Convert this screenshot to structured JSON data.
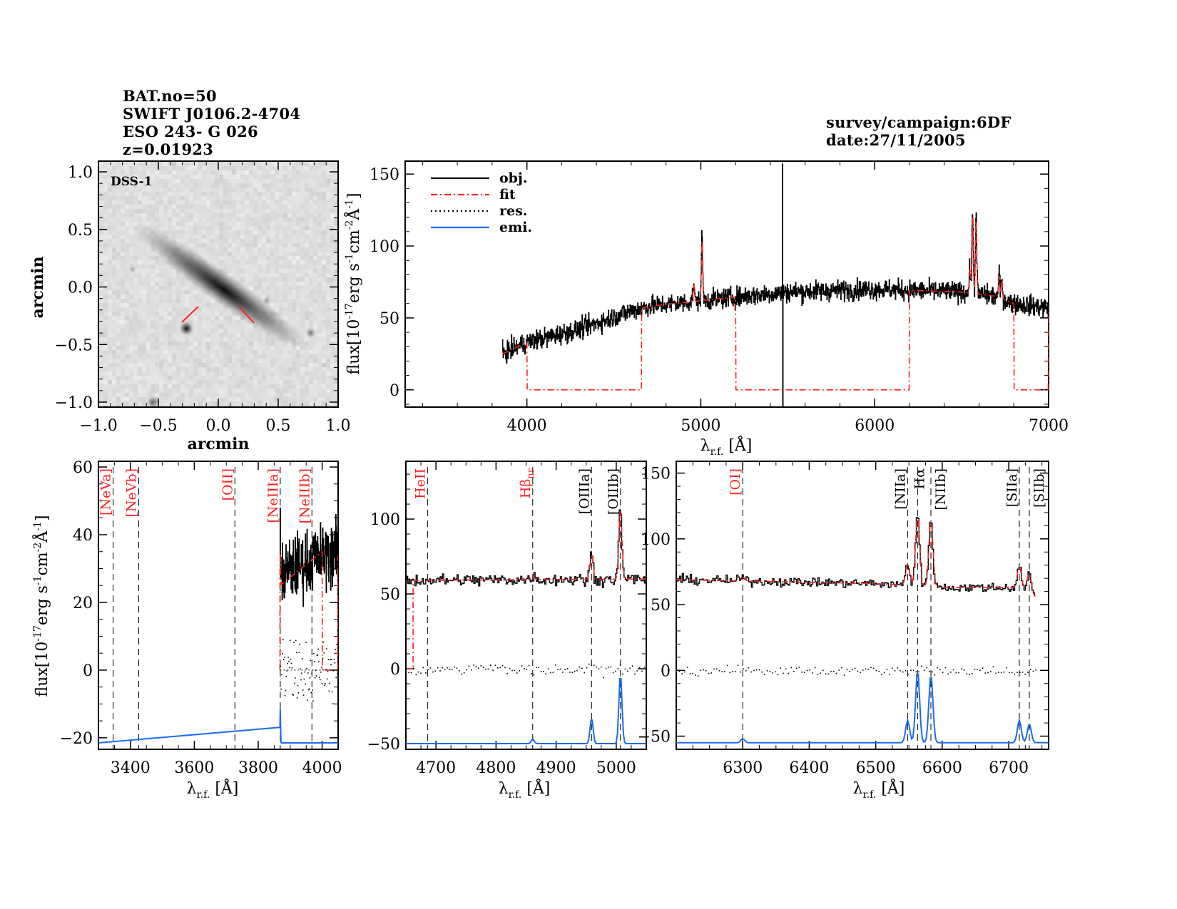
{
  "header": {
    "bat": "BAT.no=50",
    "swift": "SWIFT J0106.2-4704",
    "name": "ESO 243- G 026",
    "z": "z=0.01923",
    "survey": "survey/campaign:6DF",
    "date": "date:27/11/2005"
  },
  "colors": {
    "obj": "#000000",
    "fit": "#ff2020",
    "res": "#000000",
    "emi": "#1a6cf0",
    "marker_red": "#ff2020",
    "marker_black": "#000000"
  },
  "labels": {
    "flux": [
      "flux[10",
      "-17",
      "erg s",
      "-1",
      "cm",
      "-2",
      "Å",
      "-1",
      "]"
    ],
    "lambda": [
      "λ",
      "r.f.",
      " [Å]"
    ],
    "arcmin": "arcmin"
  },
  "chart_data": [
    {
      "type": "heatmap",
      "title": "DSS-1",
      "xlabel": "arcmin",
      "ylabel": "arcmin",
      "xlim": [
        -1.0,
        1.0
      ],
      "ylim": [
        -1.0,
        1.0
      ],
      "xticks": [
        "-1.0",
        "-0.5",
        "0.0",
        "0.5",
        "1.0"
      ],
      "yticks": [
        "-1.0",
        "-0.5",
        "0.0",
        "0.5",
        "1.0"
      ],
      "colormap": "grayscale-inverted"
    },
    {
      "type": "line",
      "panel": "full",
      "xlim": [
        3300,
        7000
      ],
      "ylim": [
        -12,
        159
      ],
      "xticks": [
        "4000",
        "5000",
        "6000",
        "7000"
      ],
      "yticks": [
        "0",
        "50",
        "100",
        "150"
      ],
      "legend": [
        {
          "label": "obj.",
          "style": "solid",
          "color": "#000000"
        },
        {
          "label": "fit",
          "style": "dash-dot",
          "color": "#ff2020"
        },
        {
          "label": "res.",
          "style": "dotted",
          "color": "#000000"
        },
        {
          "label": "emi.",
          "style": "solid",
          "color": "#1a6cf0"
        }
      ],
      "legend_position": "top-left",
      "range": [
        3860,
        7000
      ],
      "continuum": [
        [
          3860,
          25
        ],
        [
          4000,
          33
        ],
        [
          4300,
          42
        ],
        [
          4600,
          55
        ],
        [
          4700,
          58
        ],
        [
          5000,
          62
        ],
        [
          5500,
          68
        ],
        [
          6000,
          70
        ],
        [
          6500,
          68
        ],
        [
          6700,
          65
        ],
        [
          6800,
          60
        ],
        [
          7000,
          57
        ]
      ],
      "noise": 5,
      "lines": [
        {
          "center": 4959,
          "amp": 12,
          "sigma": 4
        },
        {
          "center": 5007,
          "amp": 42,
          "sigma": 4
        },
        {
          "center": 6548,
          "amp": 17,
          "sigma": 4
        },
        {
          "center": 6563,
          "amp": 55,
          "sigma": 4
        },
        {
          "center": 6583,
          "amp": 52,
          "sigma": 4
        },
        {
          "center": 6716,
          "amp": 15,
          "sigma": 4
        },
        {
          "center": 6731,
          "amp": 12,
          "sigma": 4
        }
      ],
      "sky_residual": {
        "center": 5470,
        "max": 157,
        "min": -30
      },
      "fit_zero_ranges": [
        [
          4000,
          4660
        ],
        [
          5200,
          6200
        ],
        [
          6800,
          7000
        ]
      ],
      "show_res": false,
      "show_emi": false,
      "markers": []
    },
    {
      "type": "line",
      "panel": "NeV-NeIII",
      "xlim": [
        3300,
        4050
      ],
      "ylim": [
        -23.4,
        61.7
      ],
      "xticks": [
        "3400",
        "3600",
        "3800",
        "4000"
      ],
      "yticks": [
        "-20",
        "0",
        "20",
        "40",
        "60"
      ],
      "range": [
        3868,
        4050
      ],
      "continuum": [
        [
          3868,
          28
        ],
        [
          3950,
          32
        ],
        [
          4050,
          35
        ]
      ],
      "fit_continuum": [
        [
          3868,
          25
        ],
        [
          4000,
          35
        ]
      ],
      "noise": 7,
      "lines": [
        {
          "center": 3869,
          "amp": 10,
          "sigma": 0.8
        }
      ],
      "fit_zero_ranges": [
        [
          4000,
          4050
        ]
      ],
      "emi_baseline": -21.5,
      "show_res": true,
      "show_emi": true,
      "markers": [
        {
          "label": "[NeVa]",
          "wavelength": 3346,
          "color": "red"
        },
        {
          "label": "[NeVb]",
          "wavelength": 3426,
          "color": "red"
        },
        {
          "label": "[OII]",
          "wavelength": 3727,
          "color": "red"
        },
        {
          "label": "[NeIIIa]",
          "wavelength": 3869,
          "color": "red"
        },
        {
          "label": "[NeIIIb]",
          "wavelength": 3968,
          "color": "red"
        }
      ]
    },
    {
      "type": "line",
      "panel": "Hbeta-OIII",
      "xlim": [
        4650,
        5050
      ],
      "ylim": [
        -53.8,
        138.6
      ],
      "xticks": [
        "4700",
        "4800",
        "4900",
        "5000"
      ],
      "yticks": [
        "-50",
        "0",
        "50",
        "100"
      ],
      "range": [
        4650,
        5050
      ],
      "continuum": [
        [
          4650,
          59
        ],
        [
          5050,
          60
        ]
      ],
      "noise": 3,
      "lines": [
        {
          "center": 4861,
          "amp": 3,
          "sigma": 2.5
        },
        {
          "center": 4959,
          "amp": 17,
          "sigma": 2.5
        },
        {
          "center": 5007,
          "amp": 47,
          "sigma": 2.5
        }
      ],
      "fit_zero_ranges": [
        [
          4650,
          4662
        ]
      ],
      "emi_baseline": -50,
      "show_res": true,
      "show_emi": true,
      "markers": [
        {
          "label": "HeII",
          "wavelength": 4686,
          "color": "red"
        },
        {
          "label": "Hβ",
          "sub": "nr",
          "wavelength": 4861,
          "color": "red"
        },
        {
          "label": "[OIIIa]",
          "wavelength": 4959,
          "color": "black"
        },
        {
          "label": "[OIIIb]",
          "wavelength": 5007,
          "color": "black"
        }
      ]
    },
    {
      "type": "line",
      "panel": "Halpha-NII-SII",
      "xlim": [
        6200,
        6760
      ],
      "ylim": [
        -60,
        159
      ],
      "xticks": [
        "6300",
        "6400",
        "6500",
        "6600",
        "6700"
      ],
      "yticks": [
        "-50",
        "0",
        "50",
        "100",
        "150"
      ],
      "range": [
        6200,
        6740
      ],
      "continuum": [
        [
          6200,
          69
        ],
        [
          6500,
          66
        ],
        [
          6600,
          63
        ],
        [
          6700,
          63
        ],
        [
          6725,
          62
        ],
        [
          6740,
          56
        ]
      ],
      "noise": 2.5,
      "lines": [
        {
          "center": 6300,
          "amp": 3,
          "sigma": 3
        },
        {
          "center": 6548,
          "amp": 17,
          "sigma": 3
        },
        {
          "center": 6563,
          "amp": 55,
          "sigma": 3
        },
        {
          "center": 6583,
          "amp": 52,
          "sigma": 3
        },
        {
          "center": 6716,
          "amp": 17,
          "sigma": 3
        },
        {
          "center": 6731,
          "amp": 14,
          "sigma": 3
        }
      ],
      "fit_zero_ranges": [],
      "emi_baseline": -55,
      "show_res": true,
      "show_emi": true,
      "markers": [
        {
          "label": "[OI]",
          "wavelength": 6300,
          "color": "red"
        },
        {
          "label": "[NIIa]",
          "wavelength": 6548,
          "color": "black"
        },
        {
          "label": "Hα",
          "wavelength": 6563,
          "color": "black"
        },
        {
          "label": "[NIIb]",
          "wavelength": 6583,
          "color": "black"
        },
        {
          "label": "[SIIa]",
          "wavelength": 6716,
          "color": "black"
        },
        {
          "label": "[SIIb]",
          "wavelength": 6731,
          "color": "black"
        }
      ]
    }
  ]
}
